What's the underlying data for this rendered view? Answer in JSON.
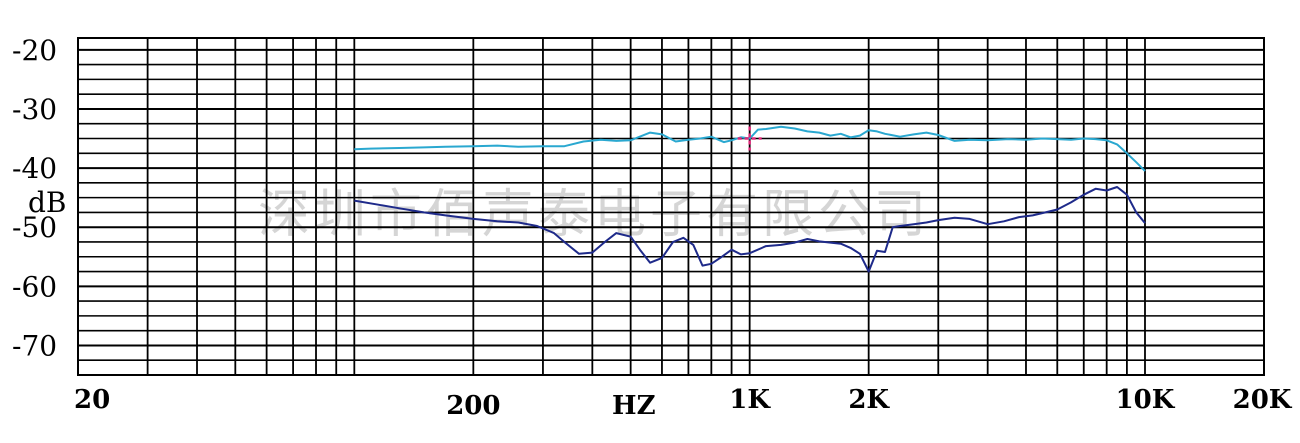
{
  "chart_data": {
    "type": "line",
    "title": "",
    "xlabel": "HZ",
    "ylabel": "dB",
    "x_scale": "log",
    "xlim": [
      20,
      20000
    ],
    "ylim": [
      -75,
      -18
    ],
    "grid": true,
    "watermark": "深圳市佰声泰电子有限公司",
    "y_ticks": [
      "-20",
      "-30",
      "-40",
      "-50",
      "-60",
      "-70"
    ],
    "x_ticks": [
      {
        "label": "20",
        "value": 20
      },
      {
        "label": "200",
        "value": 200
      },
      {
        "label": "1K",
        "value": 1000
      },
      {
        "label": "2K",
        "value": 2000
      },
      {
        "label": "10K",
        "value": 10000
      },
      {
        "label": "20K",
        "value": 20000
      }
    ],
    "series": [
      {
        "color": "#2aa8d0",
        "x": [
          100,
          110,
          130,
          150,
          170,
          200,
          230,
          260,
          300,
          340,
          380,
          420,
          460,
          500,
          560,
          600,
          650,
          700,
          750,
          800,
          860,
          900,
          950,
          1000,
          1050,
          1100,
          1200,
          1300,
          1400,
          1500,
          1600,
          1700,
          1800,
          1900,
          2000,
          2100,
          2200,
          2400,
          2600,
          2800,
          3000,
          3300,
          3600,
          4000,
          4500,
          5000,
          5500,
          6000,
          6500,
          7000,
          7500,
          8000,
          8500,
          9000,
          9500,
          10000
        ],
        "y": [
          -36.8,
          -36.7,
          -36.6,
          -36.5,
          -36.4,
          -36.3,
          -36.2,
          -36.4,
          -36.3,
          -36.3,
          -35.5,
          -35.2,
          -35.4,
          -35.3,
          -34.0,
          -34.3,
          -35.5,
          -35.2,
          -35.0,
          -34.7,
          -35.6,
          -35.3,
          -34.8,
          -35.0,
          -33.5,
          -33.4,
          -33.0,
          -33.3,
          -33.8,
          -34.0,
          -34.5,
          -34.2,
          -34.8,
          -34.5,
          -33.6,
          -33.8,
          -34.2,
          -34.7,
          -34.3,
          -34.0,
          -34.4,
          -35.4,
          -35.2,
          -35.3,
          -35.1,
          -35.2,
          -35.0,
          -35.1,
          -35.2,
          -35.0,
          -35.1,
          -35.3,
          -36.0,
          -37.5,
          -39.0,
          -40.5
        ]
      },
      {
        "color": "#1e2a8a",
        "x": [
          100,
          115,
          130,
          150,
          170,
          200,
          230,
          260,
          290,
          320,
          340,
          370,
          400,
          430,
          460,
          500,
          530,
          560,
          600,
          640,
          680,
          720,
          760,
          800,
          850,
          900,
          950,
          1000,
          1100,
          1200,
          1300,
          1400,
          1500,
          1600,
          1700,
          1800,
          1900,
          2000,
          2100,
          2200,
          2300,
          2400,
          2600,
          2800,
          3000,
          3300,
          3600,
          4000,
          4400,
          4800,
          5200,
          5600,
          6000,
          6500,
          7000,
          7500,
          8000,
          8500,
          9000,
          9500,
          10000
        ],
        "y": [
          -45.5,
          -46.2,
          -46.8,
          -47.5,
          -48.0,
          -48.6,
          -49.0,
          -49.2,
          -49.8,
          -51.0,
          -52.5,
          -54.5,
          -54.3,
          -52.5,
          -51.0,
          -51.6,
          -54.0,
          -56.0,
          -55.2,
          -52.5,
          -51.8,
          -53.0,
          -56.5,
          -56.2,
          -55.0,
          -53.8,
          -54.6,
          -54.4,
          -53.2,
          -53.0,
          -52.6,
          -52.0,
          -52.4,
          -52.6,
          -52.8,
          -53.5,
          -54.5,
          -57.5,
          -54.0,
          -54.2,
          -50.0,
          -49.8,
          -49.5,
          -49.2,
          -48.8,
          -48.4,
          -48.6,
          -49.5,
          -49.0,
          -48.3,
          -48.0,
          -47.5,
          -47.0,
          -45.8,
          -44.5,
          -43.5,
          -43.8,
          -43.2,
          -44.5,
          -47.5,
          -49.3
        ]
      }
    ]
  }
}
